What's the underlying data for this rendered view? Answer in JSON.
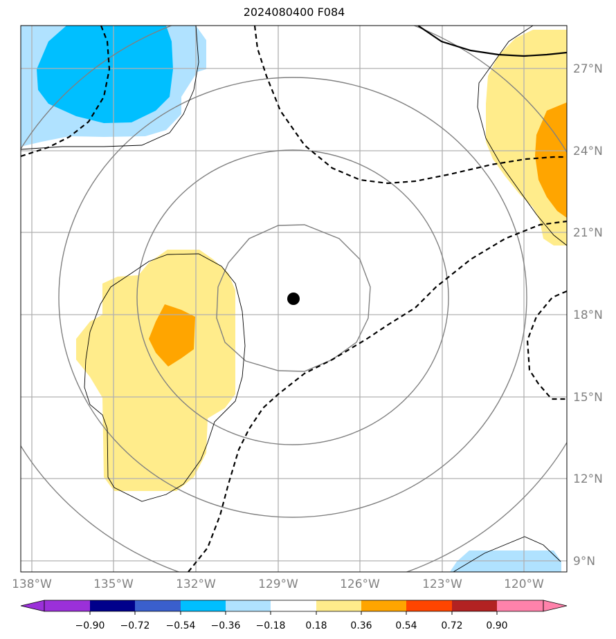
{
  "title": "2024080400 F084",
  "lon_ticks": [
    "138°W",
    "135°W",
    "132°W",
    "129°W",
    "126°W",
    "123°W",
    "120°W"
  ],
  "lat_ticks": [
    "27°N",
    "24°N",
    "21°N",
    "18°N",
    "15°N",
    "12°N",
    "9°N"
  ],
  "colorbar": {
    "levels": [
      "−0.90",
      "−0.72",
      "−0.54",
      "−0.36",
      "−0.18",
      "0.18",
      "0.36",
      "0.54",
      "0.72",
      "0.90"
    ],
    "colors": [
      "#9b30d9",
      "#00008b",
      "#3a5fcd",
      "#00bfff",
      "#b0e2ff",
      "#ffffff",
      "#ffec8b",
      "#ffa500",
      "#ff4500",
      "#b22222",
      "#ff82ab"
    ]
  },
  "fill_colors": {
    "light_blue": "#b0e2ff",
    "blue": "#00bfff",
    "light_yellow": "#ffec8b",
    "orange": "#ffa500"
  },
  "storm_center_marker": "black-dot"
}
